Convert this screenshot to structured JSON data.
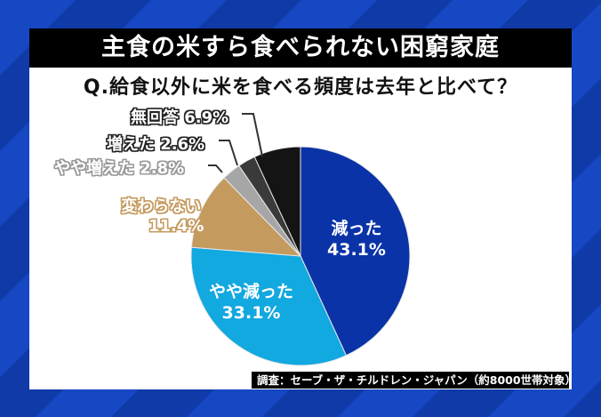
{
  "title": "主食の米すら食べられない困窮家庭",
  "question": "Q.給食以外に米を食べる頻度は去年と比べて？",
  "source": "調査：セーブ・ザ・チルドレン・ジャパン（約8000世帯対象）",
  "colors": {
    "background": "#1648c4",
    "decreased": "#0a33a8",
    "slightly_decreased": "#12a8e0",
    "unchanged": "#c49a5e",
    "slightly_increased": "#a6a6a6",
    "increased": "#3a3a3a",
    "no_answer": "#141414"
  },
  "labels": {
    "decreased": {
      "name": "減った",
      "value": "43.1%"
    },
    "slightly_decreased": {
      "name": "やや減った",
      "value": "33.1%"
    },
    "unchanged": {
      "name": "変わらない",
      "value": "11.4%"
    },
    "slightly_increased": {
      "name": "やや増えた",
      "value": "2.8%"
    },
    "increased": {
      "name": "増えた",
      "value": "2.6%"
    },
    "no_answer": {
      "name": "無回答",
      "value": "6.9%"
    }
  },
  "chart_data": {
    "type": "pie",
    "title": "主食の米すら食べられない困窮家庭",
    "subtitle": "Q.給食以外に米を食べる頻度は去年と比べて？",
    "categories": [
      "減った",
      "やや減った",
      "変わらない",
      "やや増えた",
      "増えた",
      "無回答"
    ],
    "values": [
      43.1,
      33.1,
      11.4,
      2.8,
      2.6,
      6.9
    ],
    "unit": "%",
    "start_angle": "12 o'clock, clockwise",
    "annotation": "調査：セーブ・ザ・チルドレン・ジャパン（約8000世帯対象）"
  }
}
